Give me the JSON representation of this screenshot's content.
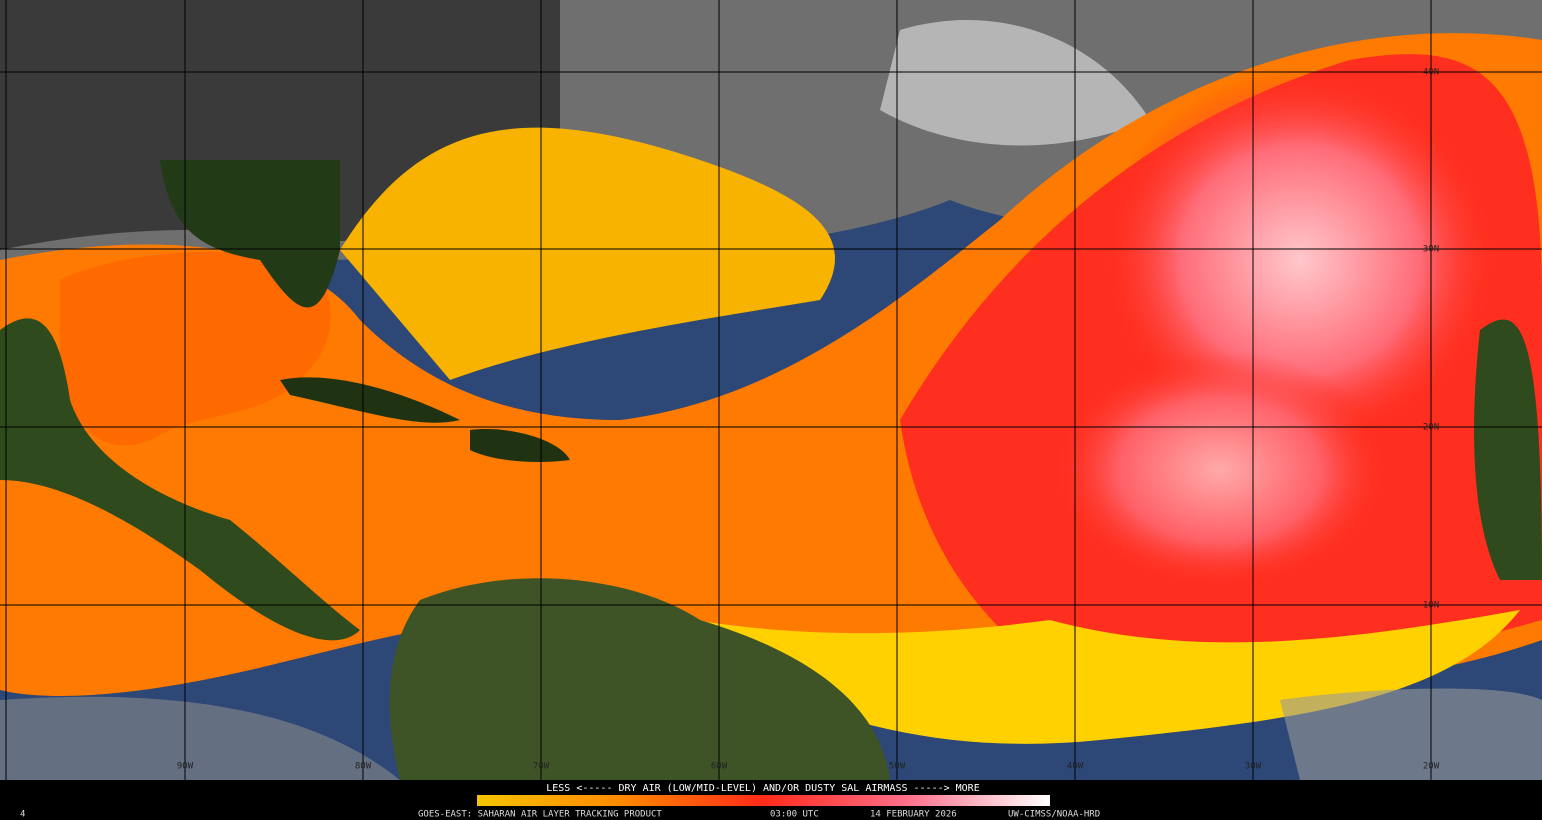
{
  "map": {
    "latitude_labels": [
      "40N",
      "30N",
      "20N",
      "10N"
    ],
    "longitude_labels": [
      "90W",
      "80W",
      "70W",
      "60W",
      "50W",
      "40W",
      "30W",
      "20W"
    ]
  },
  "footer": {
    "legend_caption": "LESS <----- DRY AIR (LOW/MID-LEVEL) AND/OR DUSTY SAL AIRMASS -----> MORE",
    "product": "GOES-EAST: SAHARAN AIR LAYER TRACKING PRODUCT",
    "time": "03:00 UTC",
    "date": "14 FEBRUARY 2026",
    "credit": "UW-CIMSS/NOAA-HRD",
    "corner_mark": "4"
  }
}
